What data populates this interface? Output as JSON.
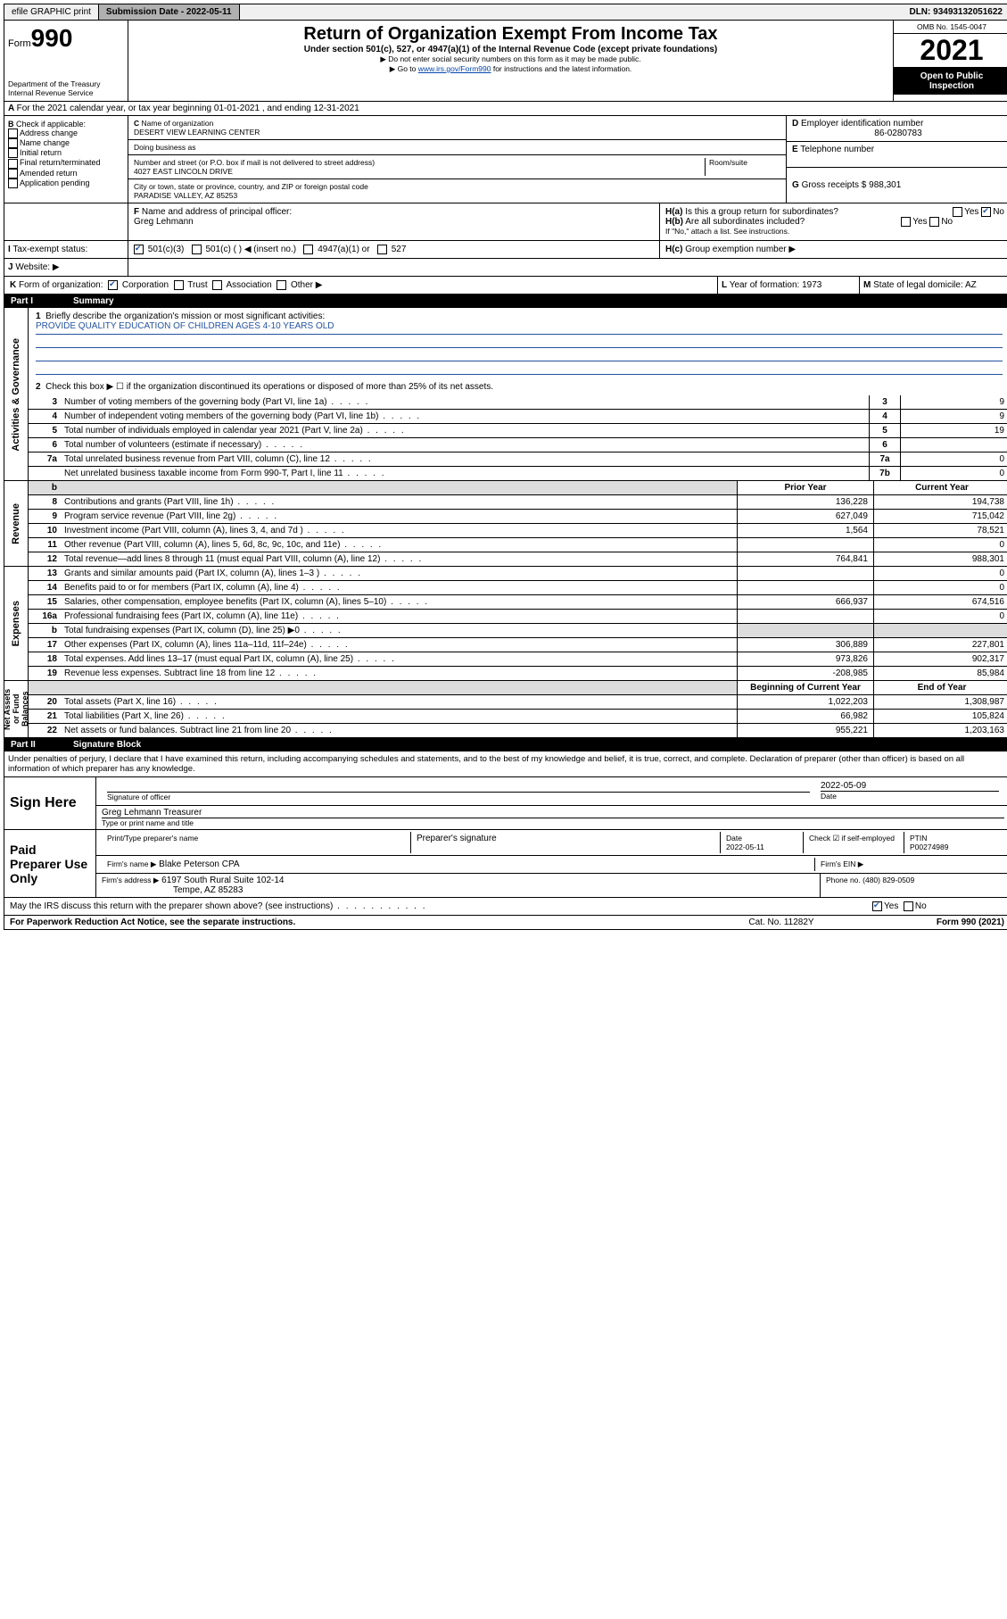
{
  "topbar": {
    "efile": "efile GRAPHIC print",
    "submission_label": "Submission Date - 2022-05-11",
    "dln": "DLN: 93493132051622"
  },
  "header": {
    "form_prefix": "Form",
    "form_number": "990",
    "dept": "Department of the Treasury",
    "irs": "Internal Revenue Service",
    "title": "Return of Organization Exempt From Income Tax",
    "subtitle": "Under section 501(c), 527, or 4947(a)(1) of the Internal Revenue Code (except private foundations)",
    "note1": "▶ Do not enter social security numbers on this form as it may be made public.",
    "note2_pre": "▶ Go to ",
    "note2_link": "www.irs.gov/Form990",
    "note2_post": " for instructions and the latest information.",
    "omb": "OMB No. 1545-0047",
    "year": "2021",
    "open_public": "Open to Public Inspection"
  },
  "line_a": "For the 2021 calendar year, or tax year beginning 01-01-2021   , and ending 12-31-2021",
  "box_b": {
    "header": "Check if applicable:",
    "opts": [
      "Address change",
      "Name change",
      "Initial return",
      "Final return/terminated",
      "Amended return",
      "Application pending"
    ]
  },
  "box_c": {
    "name_label": "Name of organization",
    "name": "DESERT VIEW LEARNING CENTER",
    "dba_label": "Doing business as",
    "street_label": "Number and street (or P.O. box if mail is not delivered to street address)",
    "room_label": "Room/suite",
    "street": "4027 EAST LINCOLN DRIVE",
    "city_label": "City or town, state or province, country, and ZIP or foreign postal code",
    "city": "PARADISE VALLEY, AZ  85253"
  },
  "box_d": {
    "label": "Employer identification number",
    "value": "86-0280783"
  },
  "box_e": {
    "label": "Telephone number",
    "value": ""
  },
  "box_g": {
    "label": "Gross receipts $",
    "value": "988,301"
  },
  "box_f": {
    "label": "Name and address of principal officer:",
    "value": "Greg Lehmann"
  },
  "box_h": {
    "ha": "Is this a group return for subordinates?",
    "hb": "Are all subordinates included?",
    "hb_note": "If \"No,\" attach a list. See instructions.",
    "hc": "Group exemption number ▶"
  },
  "box_i": {
    "label": "Tax-exempt status:",
    "opts": [
      "501(c)(3)",
      "501(c) ( ) ◀ (insert no.)",
      "4947(a)(1) or",
      "527"
    ]
  },
  "box_j": {
    "label": "Website: ▶"
  },
  "box_k": {
    "label": "Form of organization:",
    "opts": [
      "Corporation",
      "Trust",
      "Association",
      "Other ▶"
    ]
  },
  "box_l": {
    "label": "Year of formation:",
    "value": "1973"
  },
  "box_m": {
    "label": "State of legal domicile:",
    "value": "AZ"
  },
  "part1": {
    "label": "Part I",
    "title": "Summary",
    "q1_label": "Briefly describe the organization's mission or most significant activities:",
    "mission": "PROVIDE QUALITY EDUCATION OF CHILDREN AGES 4-10 YEARS OLD",
    "q2": "Check this box ▶ ☐  if the organization discontinued its operations or disposed of more than 25% of its net assets.",
    "sections": {
      "governance": "Activities & Governance",
      "revenue": "Revenue",
      "expenses": "Expenses",
      "net": "Net Assets or Fund Balances"
    },
    "gov_lines": [
      {
        "n": "3",
        "d": "Number of voting members of the governing body (Part VI, line 1a)",
        "box": "3",
        "v": "9"
      },
      {
        "n": "4",
        "d": "Number of independent voting members of the governing body (Part VI, line 1b)",
        "box": "4",
        "v": "9"
      },
      {
        "n": "5",
        "d": "Total number of individuals employed in calendar year 2021 (Part V, line 2a)",
        "box": "5",
        "v": "19"
      },
      {
        "n": "6",
        "d": "Total number of volunteers (estimate if necessary)",
        "box": "6",
        "v": ""
      },
      {
        "n": "7a",
        "d": "Total unrelated business revenue from Part VIII, column (C), line 12",
        "box": "7a",
        "v": "0"
      },
      {
        "n": "",
        "d": "Net unrelated business taxable income from Form 990-T, Part I, line 11",
        "box": "7b",
        "v": "0"
      }
    ],
    "prior_label": "Prior Year",
    "current_label": "Current Year",
    "rev_lines": [
      {
        "n": "8",
        "d": "Contributions and grants (Part VIII, line 1h)",
        "p": "136,228",
        "c": "194,738"
      },
      {
        "n": "9",
        "d": "Program service revenue (Part VIII, line 2g)",
        "p": "627,049",
        "c": "715,042"
      },
      {
        "n": "10",
        "d": "Investment income (Part VIII, column (A), lines 3, 4, and 7d )",
        "p": "1,564",
        "c": "78,521"
      },
      {
        "n": "11",
        "d": "Other revenue (Part VIII, column (A), lines 5, 6d, 8c, 9c, 10c, and 11e)",
        "p": "",
        "c": "0"
      },
      {
        "n": "12",
        "d": "Total revenue—add lines 8 through 11 (must equal Part VIII, column (A), line 12)",
        "p": "764,841",
        "c": "988,301"
      }
    ],
    "exp_lines": [
      {
        "n": "13",
        "d": "Grants and similar amounts paid (Part IX, column (A), lines 1–3 )",
        "p": "",
        "c": "0"
      },
      {
        "n": "14",
        "d": "Benefits paid to or for members (Part IX, column (A), line 4)",
        "p": "",
        "c": "0"
      },
      {
        "n": "15",
        "d": "Salaries, other compensation, employee benefits (Part IX, column (A), lines 5–10)",
        "p": "666,937",
        "c": "674,516"
      },
      {
        "n": "16a",
        "d": "Professional fundraising fees (Part IX, column (A), line 11e)",
        "p": "",
        "c": "0"
      },
      {
        "n": "b",
        "d": "Total fundraising expenses (Part IX, column (D), line 25) ▶0",
        "p": "shaded",
        "c": "shaded"
      },
      {
        "n": "17",
        "d": "Other expenses (Part IX, column (A), lines 11a–11d, 11f–24e)",
        "p": "306,889",
        "c": "227,801"
      },
      {
        "n": "18",
        "d": "Total expenses. Add lines 13–17 (must equal Part IX, column (A), line 25)",
        "p": "973,826",
        "c": "902,317"
      },
      {
        "n": "19",
        "d": "Revenue less expenses. Subtract line 18 from line 12",
        "p": "-208,985",
        "c": "85,984"
      }
    ],
    "beg_label": "Beginning of Current Year",
    "end_label": "End of Year",
    "net_lines": [
      {
        "n": "20",
        "d": "Total assets (Part X, line 16)",
        "p": "1,022,203",
        "c": "1,308,987"
      },
      {
        "n": "21",
        "d": "Total liabilities (Part X, line 26)",
        "p": "66,982",
        "c": "105,824"
      },
      {
        "n": "22",
        "d": "Net assets or fund balances. Subtract line 21 from line 20",
        "p": "955,221",
        "c": "1,203,163"
      }
    ]
  },
  "part2": {
    "label": "Part II",
    "title": "Signature Block",
    "decl": "Under penalties of perjury, I declare that I have examined this return, including accompanying schedules and statements, and to the best of my knowledge and belief, it is true, correct, and complete. Declaration of preparer (other than officer) is based on all information of which preparer has any knowledge."
  },
  "sign": {
    "here": "Sign Here",
    "sig_officer": "Signature of officer",
    "date": "2022-05-09",
    "name": "Greg Lehmann  Treasurer",
    "type_label": "Type or print name and title"
  },
  "paid": {
    "label": "Paid Preparer Use Only",
    "pt_label": "Print/Type preparer's name",
    "sig_label": "Preparer's signature",
    "date_label": "Date",
    "date": "2022-05-11",
    "check_label": "Check ☑ if self-employed",
    "ptin_label": "PTIN",
    "ptin": "P00274989",
    "firm_name_label": "Firm's name   ▶",
    "firm_name": "Blake Peterson CPA",
    "firm_ein_label": "Firm's EIN ▶",
    "firm_addr_label": "Firm's address ▶",
    "firm_addr": "6197 South Rural Suite 102-14",
    "firm_city": "Tempe, AZ  85283",
    "phone_label": "Phone no.",
    "phone": "(480) 829-0509"
  },
  "discuss": "May the IRS discuss this return with the preparer shown above? (see instructions)",
  "footer": {
    "pra": "For Paperwork Reduction Act Notice, see the separate instructions.",
    "cat": "Cat. No. 11282Y",
    "form": "Form 990 (2021)"
  }
}
